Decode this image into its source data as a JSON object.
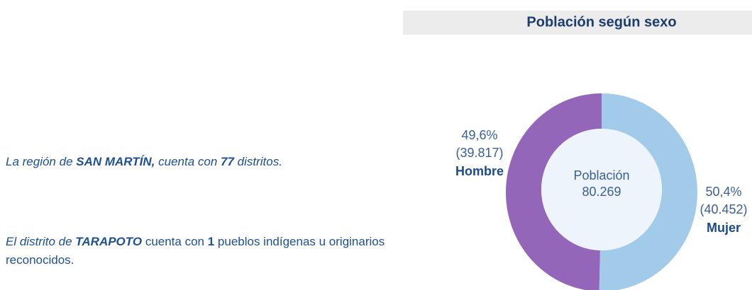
{
  "paragraphs": [
    [
      {
        "text": "La región de ",
        "style": "italic"
      },
      {
        "text": "SAN MARTÍN,",
        "style": "bold-italic"
      },
      {
        "text": " cuenta con ",
        "style": "italic"
      },
      {
        "text": "77",
        "style": "bold-italic"
      },
      {
        "text": " distritos.",
        "style": "italic"
      }
    ],
    [
      {
        "text": "El distrito de ",
        "style": "italic"
      },
      {
        "text": "TARAPOTO",
        "style": "bold-italic"
      },
      {
        "text": " cuenta con ",
        "style": "normal"
      },
      {
        "text": "1",
        "style": "bold"
      },
      {
        "text": " pueblos indígenas u originarios reconocidos.",
        "style": "normal"
      }
    ]
  ],
  "chart_data": {
    "type": "donut",
    "title": "Población según sexo",
    "categories": [
      "Hombre",
      "Mujer"
    ],
    "values": [
      49.6,
      50.4
    ],
    "value_labels": [
      "49,6%",
      "50,4%"
    ],
    "count_labels": [
      "(39.817)",
      "(40.452)"
    ],
    "colors": [
      "#9466b9",
      "#a2cbea"
    ],
    "center_label": "Población",
    "center_value": "80.269"
  }
}
